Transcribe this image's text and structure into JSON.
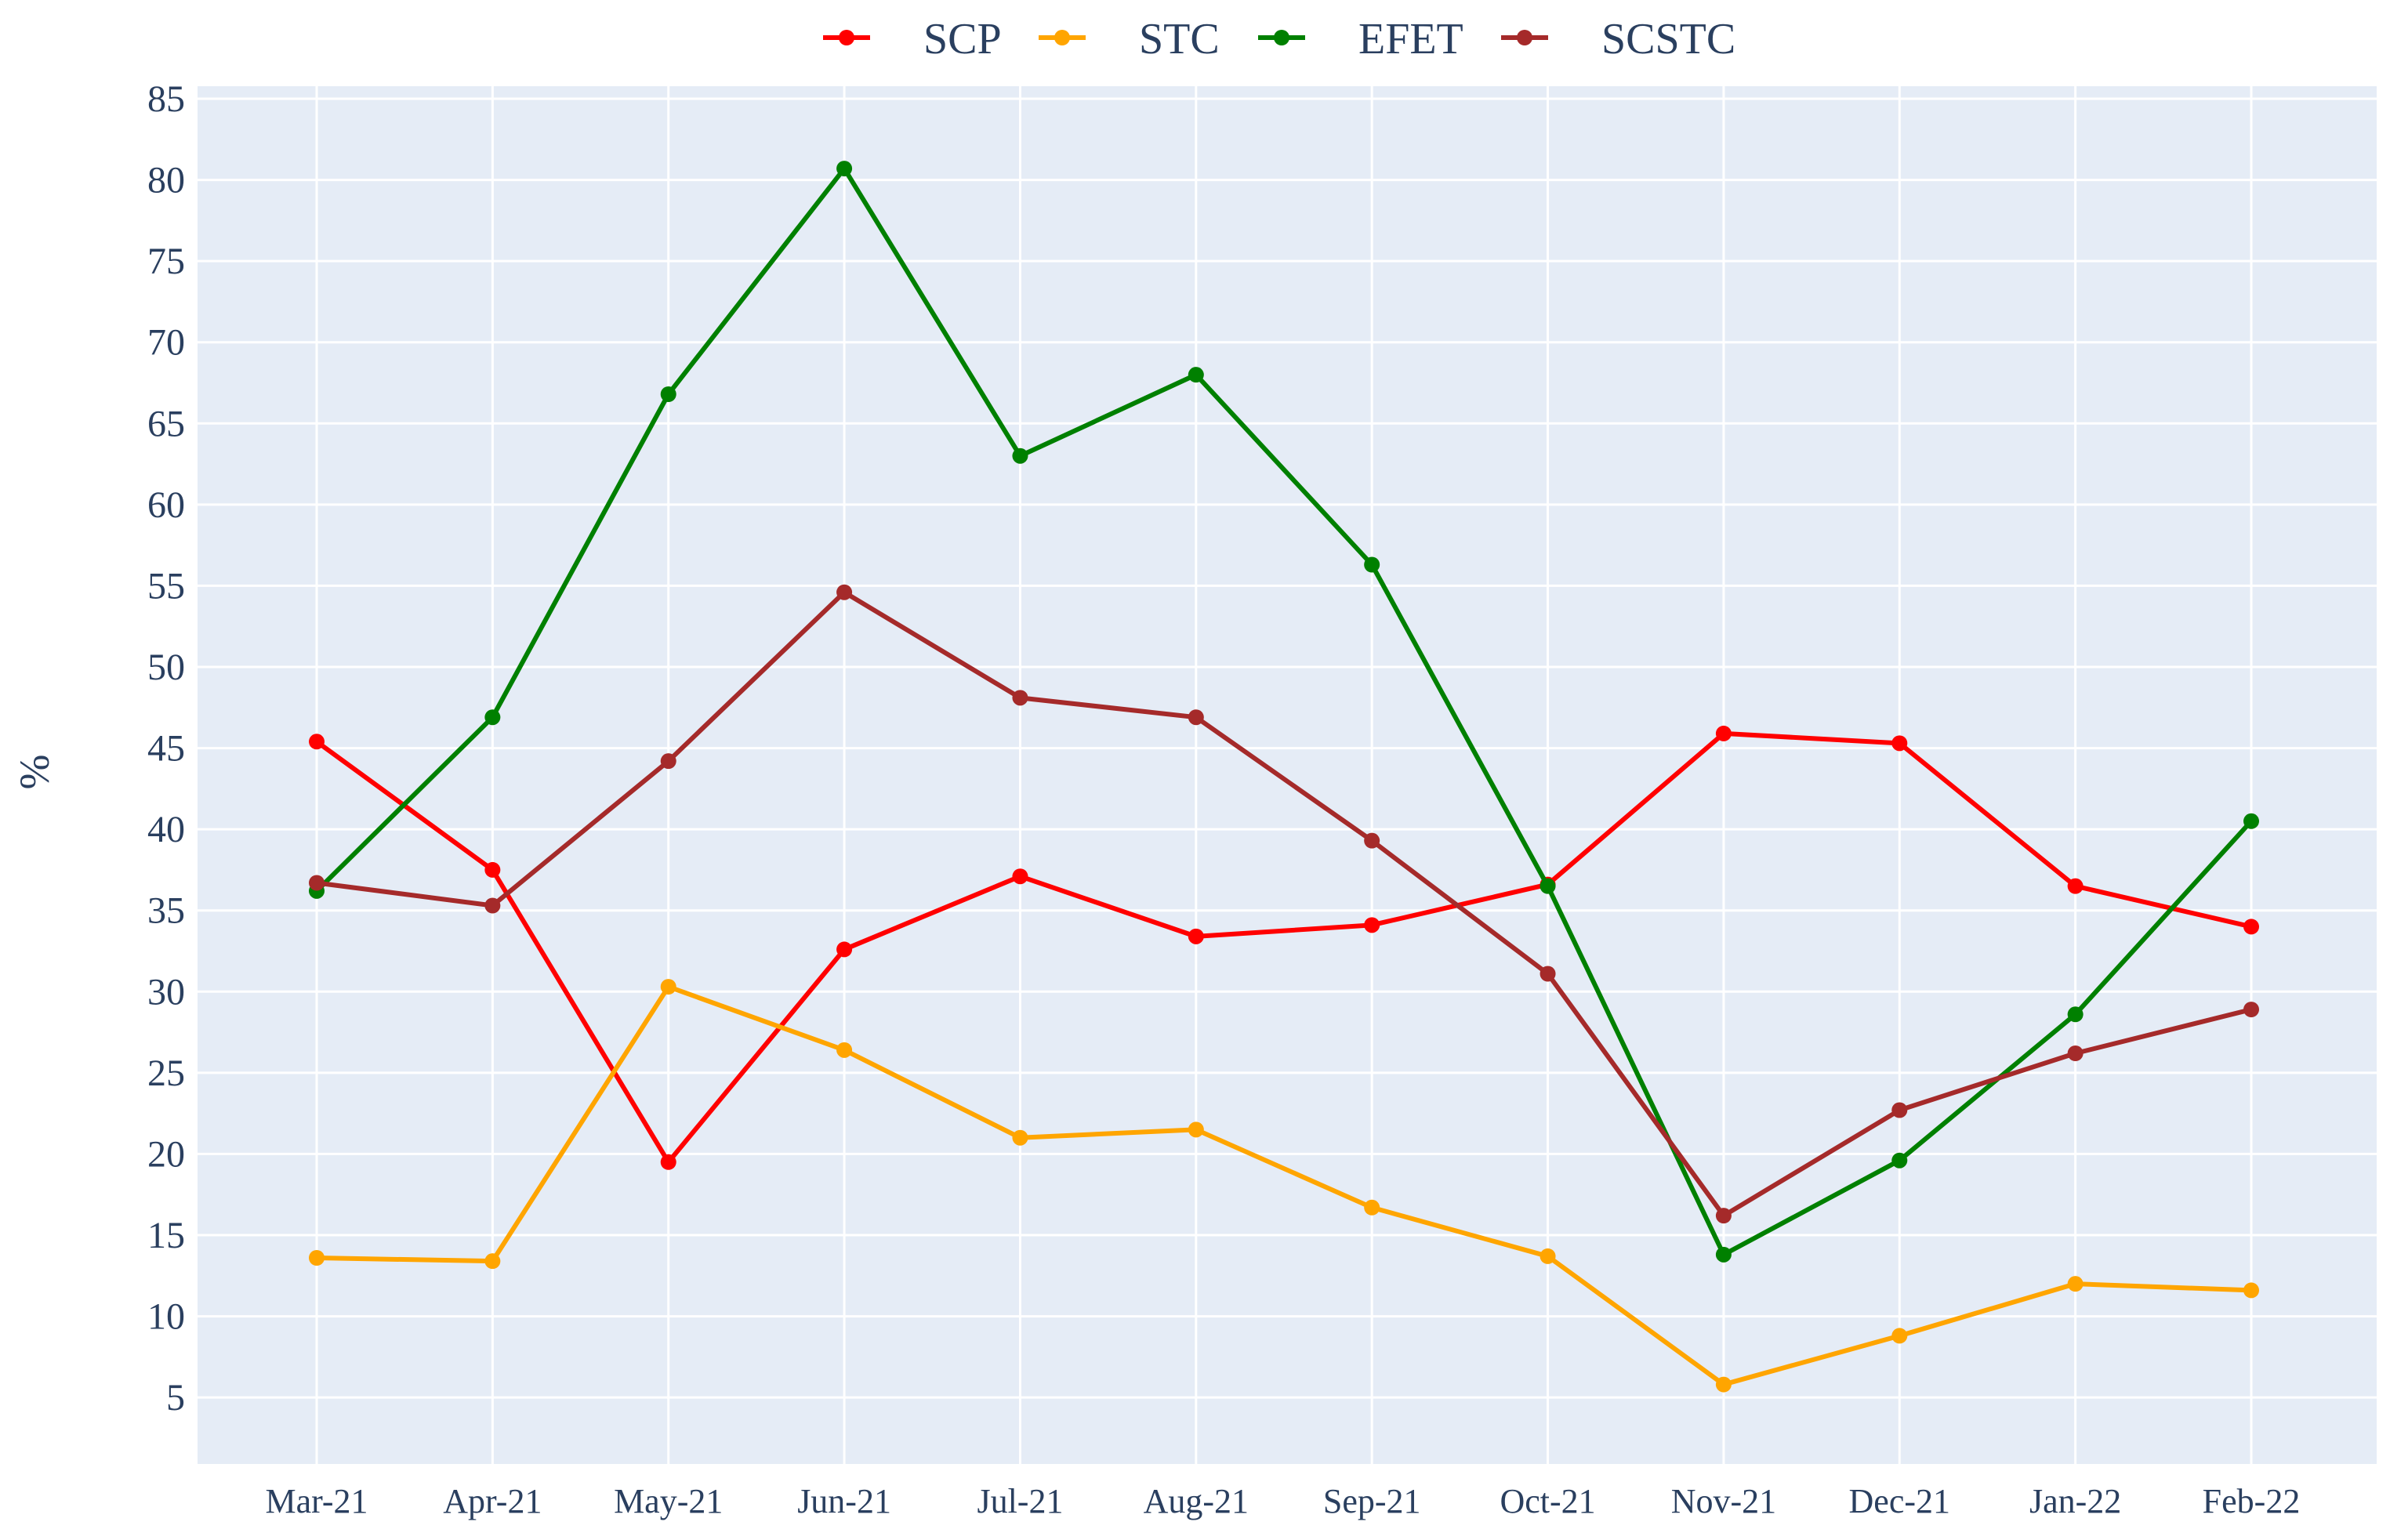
{
  "chart_data": {
    "type": "line",
    "title": "",
    "xlabel": "",
    "ylabel": "%",
    "ylim": [
      1,
      85
    ],
    "yticks": [
      5,
      10,
      15,
      20,
      25,
      30,
      35,
      40,
      45,
      50,
      55,
      60,
      65,
      70,
      75,
      80,
      85
    ],
    "grid": true,
    "legend_position": "top-center",
    "categories": [
      "Mar-21",
      "Apr-21",
      "May-21",
      "Jun-21",
      "Jul-21",
      "Aug-21",
      "Sep-21",
      "Oct-21",
      "Nov-21",
      "Dec-21",
      "Jan-22",
      "Feb-22"
    ],
    "colors": {
      "plot_background": "#e5ecf6",
      "grid": "#ffffff",
      "text": "#2a3f5f"
    },
    "series": [
      {
        "name": "SCP",
        "color": "#ff0000",
        "values": [
          45.4,
          37.5,
          19.5,
          32.6,
          37.1,
          33.4,
          34.1,
          36.6,
          45.9,
          45.3,
          36.5,
          34.0
        ]
      },
      {
        "name": "STC",
        "color": "#ffa500",
        "values": [
          13.6,
          13.4,
          30.3,
          26.4,
          21.0,
          21.5,
          16.7,
          13.7,
          5.8,
          8.8,
          12.0,
          11.6
        ]
      },
      {
        "name": "EFET",
        "color": "#008000",
        "values": [
          36.2,
          46.9,
          66.8,
          80.7,
          63.0,
          68.0,
          56.3,
          36.5,
          13.8,
          19.6,
          28.6,
          40.5
        ]
      },
      {
        "name": "SCSTC",
        "color": "#a52a2a",
        "values": [
          36.7,
          35.3,
          44.2,
          54.6,
          48.1,
          46.9,
          39.3,
          31.1,
          16.2,
          22.7,
          26.2,
          28.9
        ]
      }
    ]
  }
}
